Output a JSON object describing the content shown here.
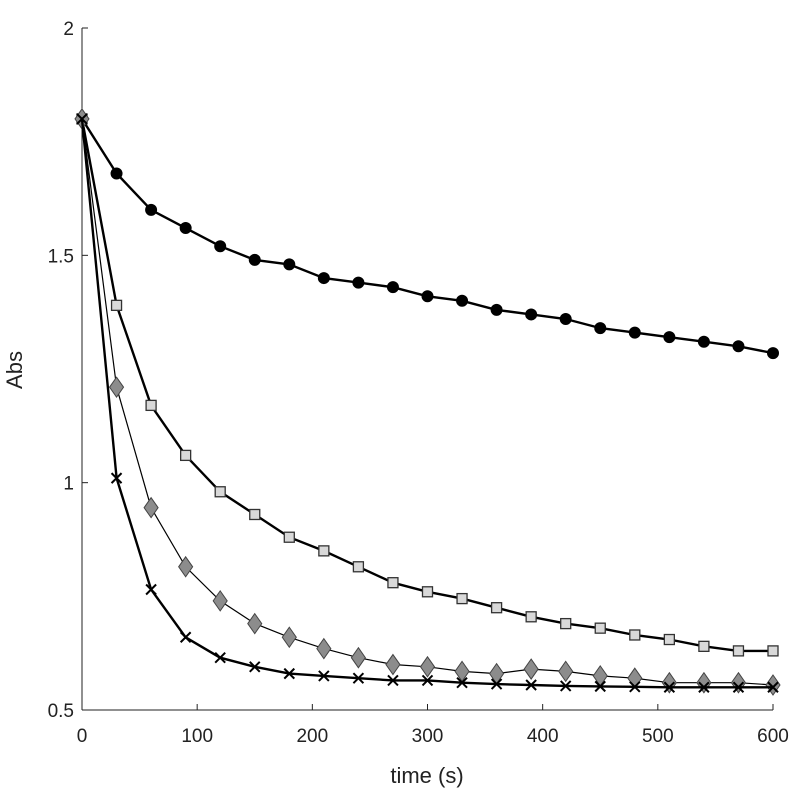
{
  "chart_data": {
    "type": "line",
    "title": "",
    "xlabel": "time (s)",
    "ylabel": "Abs",
    "xlim": [
      0,
      600
    ],
    "ylim": [
      0.5,
      2
    ],
    "xticks": [
      0,
      100,
      200,
      300,
      400,
      500,
      600
    ],
    "xtick_labels": [
      "0",
      "100",
      "200",
      "300",
      "400",
      "500",
      "600"
    ],
    "yticks": [
      0.5,
      1,
      1.5,
      2
    ],
    "ytick_labels": [
      "0.5",
      "1",
      "1.5",
      "2"
    ],
    "grid": false,
    "x": [
      0,
      30,
      60,
      90,
      120,
      150,
      180,
      210,
      240,
      270,
      300,
      330,
      360,
      390,
      420,
      450,
      480,
      510,
      540,
      570,
      600
    ],
    "series": [
      {
        "name": "circles",
        "marker": "circle",
        "color": "#000000",
        "fill": "#000000",
        "values": [
          1.8,
          1.68,
          1.6,
          1.56,
          1.52,
          1.49,
          1.48,
          1.45,
          1.44,
          1.43,
          1.41,
          1.4,
          1.38,
          1.37,
          1.36,
          1.34,
          1.33,
          1.32,
          1.31,
          1.3,
          1.285
        ]
      },
      {
        "name": "squares",
        "marker": "square",
        "color": "#000000",
        "fill": "#d9d9d9",
        "values": [
          1.8,
          1.39,
          1.17,
          1.06,
          0.98,
          0.93,
          0.88,
          0.85,
          0.815,
          0.78,
          0.76,
          0.745,
          0.725,
          0.705,
          0.69,
          0.68,
          0.665,
          0.655,
          0.64,
          0.63,
          0.63
        ]
      },
      {
        "name": "diamonds",
        "marker": "diamond",
        "color": "#000000",
        "fill": "#8c8c8c",
        "values": [
          1.8,
          1.21,
          0.945,
          0.815,
          0.74,
          0.69,
          0.66,
          0.635,
          0.615,
          0.6,
          0.595,
          0.585,
          0.58,
          0.59,
          0.585,
          0.575,
          0.57,
          0.56,
          0.56,
          0.56,
          0.555
        ]
      },
      {
        "name": "crosses",
        "marker": "x",
        "color": "#000000",
        "fill": "none",
        "values": [
          1.8,
          1.01,
          0.765,
          0.66,
          0.615,
          0.595,
          0.58,
          0.575,
          0.57,
          0.565,
          0.565,
          0.56,
          0.557,
          0.555,
          0.553,
          0.552,
          0.551,
          0.55,
          0.55,
          0.55,
          0.55
        ]
      }
    ]
  }
}
